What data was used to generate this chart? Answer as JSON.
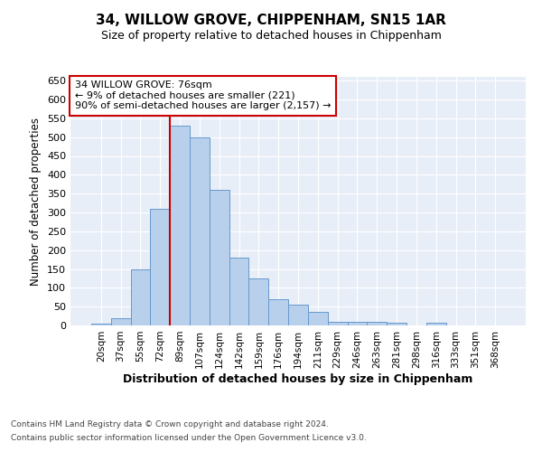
{
  "title": "34, WILLOW GROVE, CHIPPENHAM, SN15 1AR",
  "subtitle": "Size of property relative to detached houses in Chippenham",
  "xlabel": "Distribution of detached houses by size in Chippenham",
  "ylabel": "Number of detached properties",
  "categories": [
    "20sqm",
    "37sqm",
    "55sqm",
    "72sqm",
    "89sqm",
    "107sqm",
    "124sqm",
    "142sqm",
    "159sqm",
    "176sqm",
    "194sqm",
    "211sqm",
    "229sqm",
    "246sqm",
    "263sqm",
    "281sqm",
    "298sqm",
    "316sqm",
    "333sqm",
    "351sqm",
    "368sqm"
  ],
  "values": [
    5,
    20,
    150,
    310,
    530,
    500,
    360,
    180,
    125,
    70,
    55,
    35,
    10,
    10,
    10,
    8,
    0,
    8,
    0,
    0,
    0
  ],
  "bar_color": "#b8d0eb",
  "bar_edge_color": "#6699cc",
  "background_color": "#e8eef8",
  "vline_color": "#cc0000",
  "annotation_text": "34 WILLOW GROVE: 76sqm\n← 9% of detached houses are smaller (221)\n90% of semi-detached houses are larger (2,157) →",
  "annotation_box_color": "white",
  "annotation_box_edge": "#cc0000",
  "ylim": [
    0,
    660
  ],
  "yticks": [
    0,
    50,
    100,
    150,
    200,
    250,
    300,
    350,
    400,
    450,
    500,
    550,
    600,
    650
  ],
  "footer_line1": "Contains HM Land Registry data © Crown copyright and database right 2024.",
  "footer_line2": "Contains public sector information licensed under the Open Government Licence v3.0.",
  "vline_index": 3.5
}
